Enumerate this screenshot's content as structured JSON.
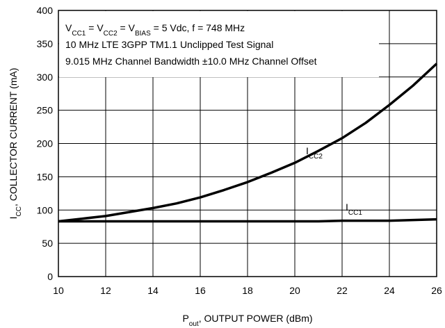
{
  "chart_data": {
    "type": "line",
    "annotation": [
      [
        {
          "t": "V"
        },
        {
          "t": "CC1",
          "sub": true
        },
        {
          "t": " = V"
        },
        {
          "t": "CC2",
          "sub": true
        },
        {
          "t": " = V"
        },
        {
          "t": "BIAS",
          "sub": true
        },
        {
          "t": " = 5 Vdc, f = 748 MHz"
        }
      ],
      [
        {
          "t": "10 MHz LTE 3GPP TM1.1 Unclipped Test Signal"
        }
      ],
      [
        {
          "t": "9.015 MHz Channel Bandwidth ±10.0 MHz Channel Offset"
        }
      ]
    ],
    "xlabel": [
      {
        "t": "P"
      },
      {
        "t": "out",
        "sub": true
      },
      {
        "t": ", OUTPUT POWER (dBm)"
      }
    ],
    "ylabel": [
      {
        "t": "I"
      },
      {
        "t": "CC",
        "sub": true
      },
      {
        "t": ", COLLECTOR CURRENT (mA)"
      }
    ],
    "x": [
      10,
      11,
      12,
      13,
      14,
      15,
      16,
      17,
      18,
      19,
      20,
      21,
      22,
      23,
      24,
      25,
      26
    ],
    "series": [
      {
        "name": [
          {
            "t": "I"
          },
          {
            "t": "CC2",
            "sub": true
          }
        ],
        "color": "#000000",
        "values": [
          83,
          87,
          91,
          97,
          103,
          110,
          119,
          130,
          142,
          156,
          171,
          189,
          208,
          231,
          258,
          287,
          320
        ]
      },
      {
        "name": [
          {
            "t": "I"
          },
          {
            "t": "CC1",
            "sub": true
          }
        ],
        "color": "#000000",
        "values": [
          83,
          83,
          83,
          83,
          83,
          83,
          83,
          83,
          83,
          83,
          83,
          83,
          84,
          84,
          84,
          85,
          86
        ]
      }
    ],
    "xlim": [
      10,
      26
    ],
    "xticks": [
      10,
      12,
      14,
      16,
      18,
      20,
      22,
      24,
      26
    ],
    "ylim": [
      0,
      400
    ],
    "yticks": [
      0,
      50,
      100,
      150,
      200,
      250,
      300,
      350,
      400
    ],
    "grid": true
  }
}
